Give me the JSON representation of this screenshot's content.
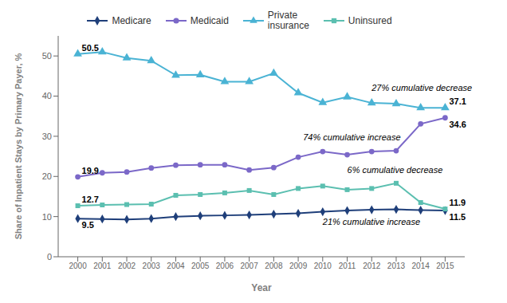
{
  "chart_data": {
    "type": "line",
    "xlabel": "Year",
    "ylabel": "Share of Inpatient Stays by Primary Payer, %",
    "x": [
      2000,
      2001,
      2002,
      2003,
      2004,
      2005,
      2006,
      2007,
      2008,
      2009,
      2010,
      2011,
      2012,
      2013,
      2014,
      2015
    ],
    "xlim": [
      1999.2,
      2015.8
    ],
    "xticks": [
      2000,
      2001,
      2002,
      2003,
      2004,
      2005,
      2006,
      2007,
      2008,
      2009,
      2010,
      2011,
      2012,
      2013,
      2014,
      2015
    ],
    "ylim": [
      0,
      55
    ],
    "yticks": [
      0,
      10,
      20,
      30,
      40,
      50
    ],
    "grid": false,
    "series": [
      {
        "name": "Medicare",
        "color": "#1f3f7a",
        "marker": "diamond",
        "values": [
          9.5,
          9.4,
          9.3,
          9.5,
          10.0,
          10.2,
          10.3,
          10.4,
          10.6,
          10.8,
          11.2,
          11.5,
          11.7,
          11.8,
          11.6,
          11.5
        ]
      },
      {
        "name": "Medicaid",
        "color": "#7b68c8",
        "marker": "circle",
        "values": [
          19.9,
          20.9,
          21.1,
          22.1,
          22.8,
          22.9,
          22.9,
          21.6,
          22.2,
          24.8,
          26.2,
          25.4,
          26.2,
          26.4,
          33.1,
          34.6
        ]
      },
      {
        "name": "Private\ninsurance",
        "color": "#4ab3d4",
        "marker": "triangle",
        "values": [
          50.5,
          51.0,
          49.5,
          48.8,
          45.2,
          45.3,
          43.6,
          43.6,
          45.7,
          40.8,
          38.4,
          39.8,
          38.3,
          38.1,
          37.1,
          37.1
        ]
      },
      {
        "name": "Uninsured",
        "color": "#5bbfb0",
        "marker": "square",
        "values": [
          12.7,
          12.9,
          13.0,
          13.1,
          15.3,
          15.5,
          15.9,
          16.5,
          15.5,
          17.0,
          17.6,
          16.7,
          17.0,
          18.3,
          13.5,
          11.9
        ]
      }
    ],
    "annotations": [
      {
        "text": "50.5",
        "x": 2000,
        "y": 50.5,
        "style": "bold"
      },
      {
        "text": "19.9",
        "x": 2000,
        "y": 19.9,
        "style": "bold"
      },
      {
        "text": "12.7",
        "x": 2000,
        "y": 12.7,
        "style": "bold"
      },
      {
        "text": "9.5",
        "x": 2000,
        "y": 9.5,
        "style": "bold"
      },
      {
        "text": "37.1",
        "x": 2015,
        "y": 37.1,
        "style": "bold"
      },
      {
        "text": "34.6",
        "x": 2015,
        "y": 34.6,
        "style": "bold"
      },
      {
        "text": "11.9",
        "x": 2015,
        "y": 11.9,
        "style": "bold"
      },
      {
        "text": "11.5",
        "x": 2015,
        "y": 11.5,
        "style": "bold"
      },
      {
        "text": "27% cumulative decrease",
        "x": 2012.0,
        "y": 41.8,
        "style": "italic"
      },
      {
        "text": "74% cumulative increase",
        "x": 2009.2,
        "y": 29.5,
        "style": "italic"
      },
      {
        "text": "6% cumulative decrease",
        "x": 2011.0,
        "y": 21.5,
        "style": "italic"
      },
      {
        "text": "21% cumulative increase",
        "x": 2010.0,
        "y": 8.5,
        "style": "italic"
      }
    ]
  }
}
